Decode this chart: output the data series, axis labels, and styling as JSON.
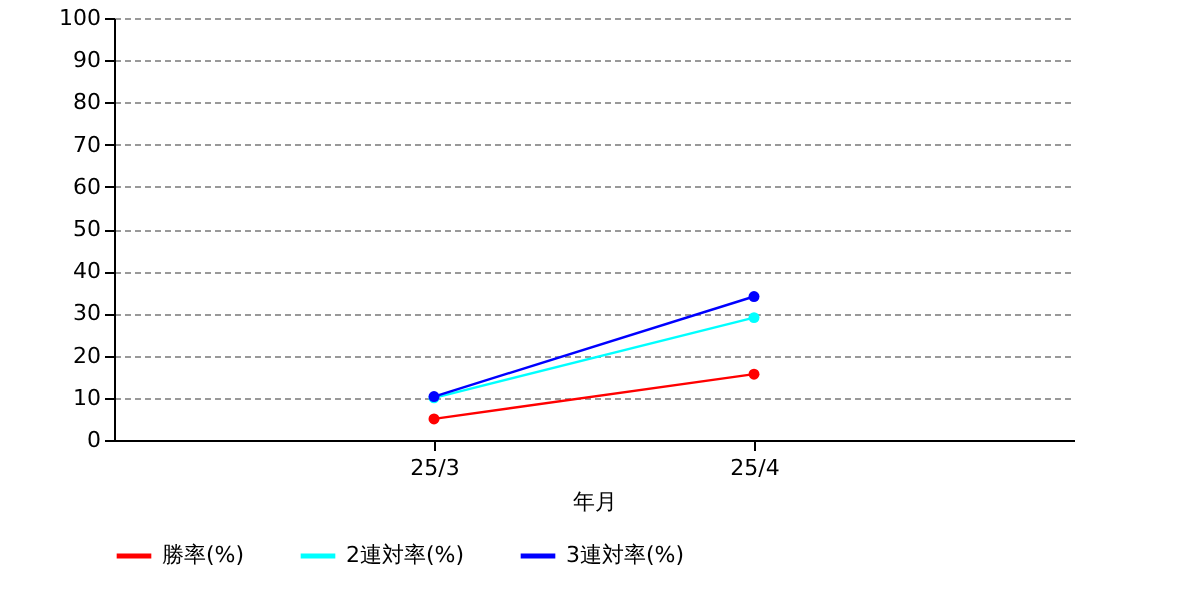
{
  "chart_data": {
    "type": "line",
    "xlabel": "年月",
    "categories": [
      "25/3",
      "25/4"
    ],
    "series": [
      {
        "name": "勝率(%)",
        "color": "#ff0000",
        "values": [
          5,
          15.6
        ]
      },
      {
        "name": "2連対率(%)",
        "color": "#00ffff",
        "values": [
          10,
          29
        ]
      },
      {
        "name": "3連対率(%)",
        "color": "#0000ff",
        "values": [
          10.3,
          34
        ]
      }
    ],
    "ylim": [
      0,
      100
    ],
    "yticks": [
      0,
      10,
      20,
      30,
      40,
      50,
      60,
      70,
      80,
      90,
      100
    ],
    "grid": "y",
    "legend": "bottom",
    "marker": "circle",
    "line_style": "solid"
  }
}
